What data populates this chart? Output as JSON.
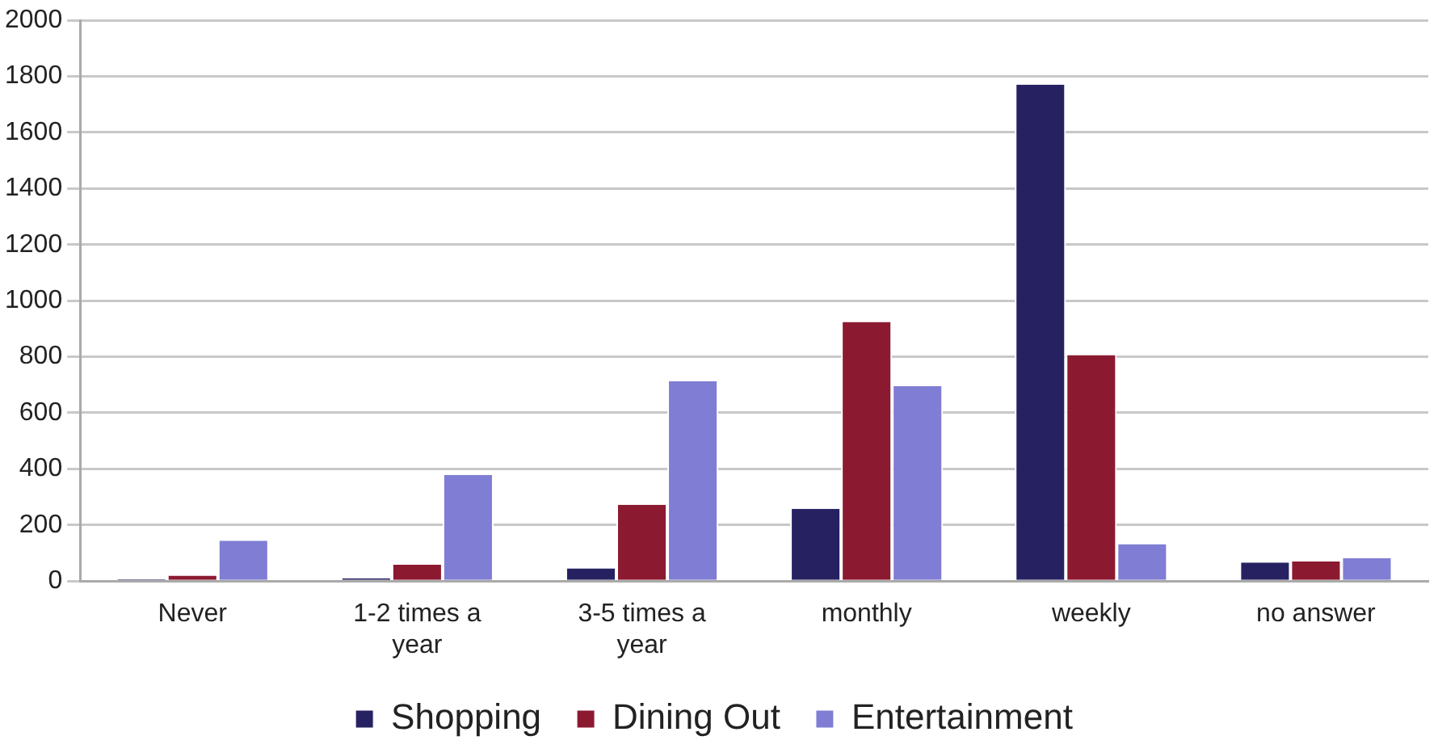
{
  "chart_data": {
    "type": "bar",
    "categories": [
      "Never",
      "1-2 times a year",
      "3-5 times a year",
      "monthly",
      "weekly",
      "no answer"
    ],
    "series": [
      {
        "name": "Shopping",
        "color": "#262262",
        "values": [
          6,
          10,
          45,
          258,
          1771,
          66
        ]
      },
      {
        "name": "Dining Out",
        "color": "#8b1a30",
        "values": [
          19,
          58,
          272,
          924,
          806,
          70
        ]
      },
      {
        "name": "Entertainment",
        "color": "#807dd4",
        "values": [
          144,
          379,
          713,
          695,
          132,
          82
        ]
      }
    ],
    "ylim": [
      0,
      2000
    ],
    "yticks": [
      0,
      200,
      400,
      600,
      800,
      1000,
      1200,
      1400,
      1600,
      1800,
      2000
    ],
    "grid": "y",
    "legend": "bottom"
  }
}
